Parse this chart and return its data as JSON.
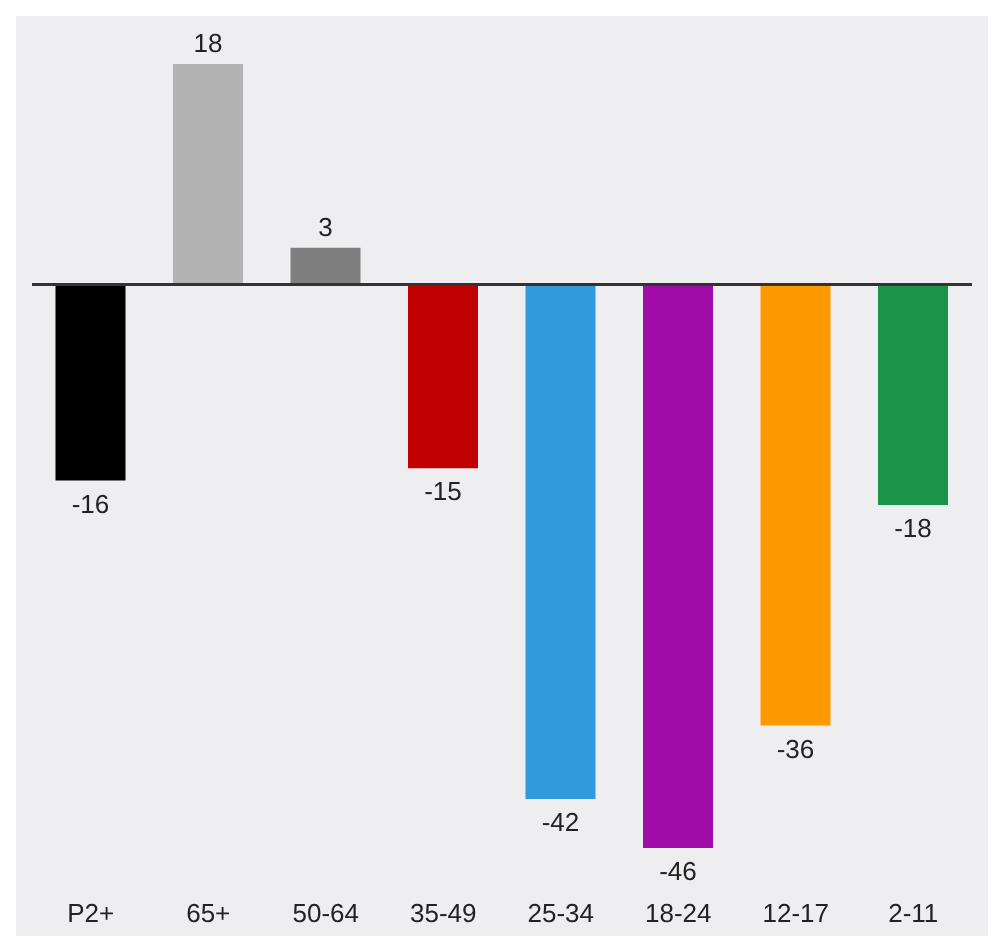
{
  "chart_data": {
    "type": "bar",
    "categories": [
      "P2+",
      "65+",
      "50-64",
      "35-49",
      "25-34",
      "18-24",
      "12-17",
      "2-11"
    ],
    "values": [
      -16,
      18,
      3,
      -15,
      -42,
      -46,
      -36,
      -18
    ],
    "colors": [
      "#000000",
      "#b3b3b3",
      "#7f7f7f",
      "#c00000",
      "#3399dd",
      "#a10ba8",
      "#ff9900",
      "#1a9448"
    ],
    "data_labels": true,
    "grid": false,
    "ref_lines": [
      {
        "axis": "y",
        "value": 0,
        "color": "#333333"
      }
    ]
  }
}
